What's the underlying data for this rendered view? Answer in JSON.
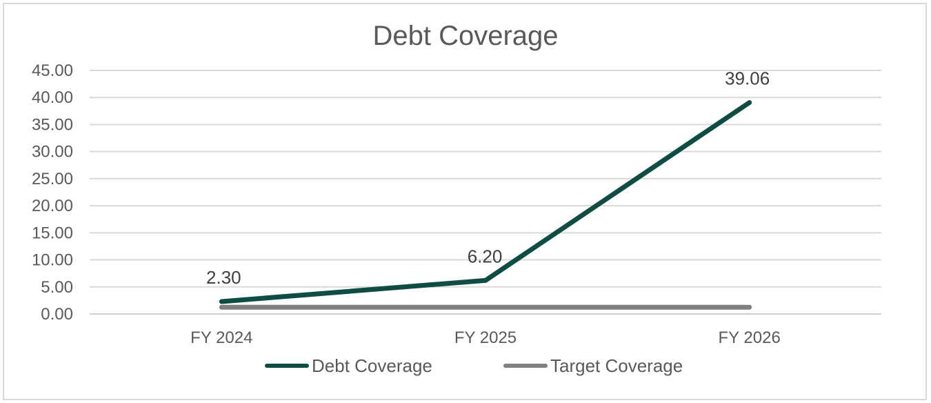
{
  "chart_data": {
    "type": "line",
    "title": "Debt Coverage",
    "categories": [
      "FY 2024",
      "FY 2025",
      "FY 2026"
    ],
    "ylim": [
      0,
      45
    ],
    "yticks": [
      "0.00",
      "5.00",
      "10.00",
      "15.00",
      "20.00",
      "25.00",
      "30.00",
      "35.00",
      "40.00",
      "45.00"
    ],
    "grid": true,
    "legend_position": "bottom",
    "series": [
      {
        "name": "Debt Coverage",
        "values": [
          2.3,
          6.2,
          39.06
        ],
        "labels": [
          "2.30",
          "6.20",
          "39.06"
        ],
        "color": "#0f4d44"
      },
      {
        "name": "Target Coverage",
        "values": [
          1.25,
          1.25,
          1.25
        ],
        "color": "#808080"
      }
    ]
  }
}
